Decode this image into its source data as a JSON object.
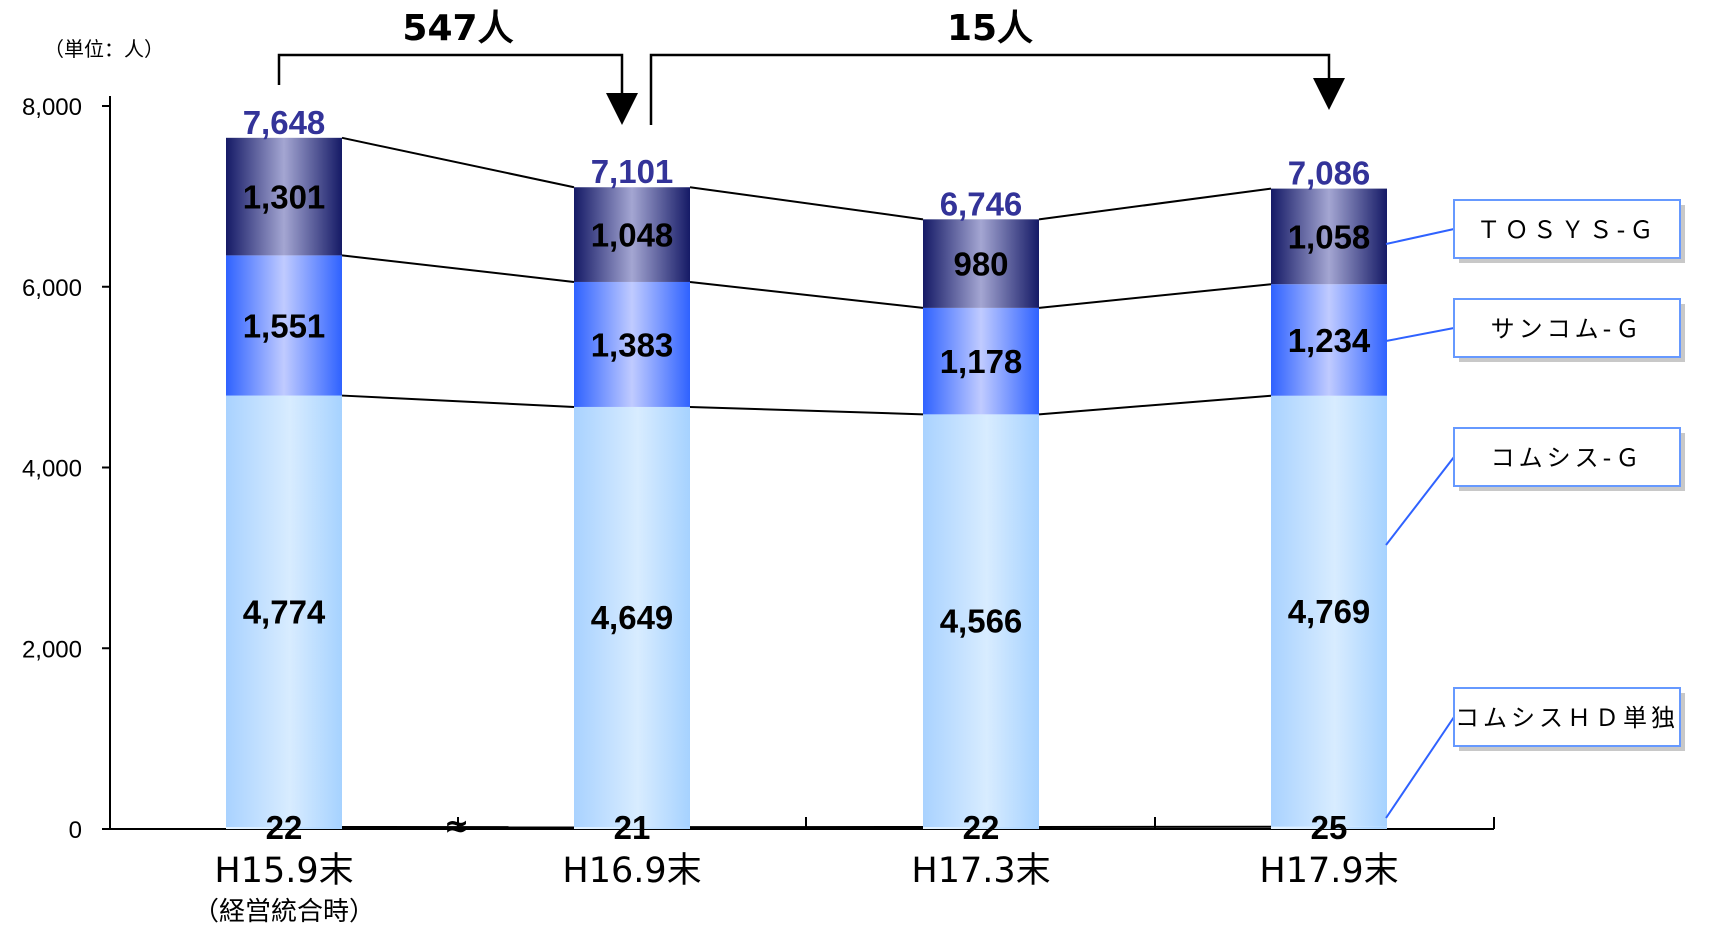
{
  "chart_data": {
    "type": "bar",
    "stacked": true,
    "unit_label": "（単位：人）",
    "categories": [
      "H15.9末",
      "H16.9末",
      "H17.3末",
      "H17.9末"
    ],
    "category_sub": [
      "（経営統合時）",
      "",
      "",
      ""
    ],
    "ylim": [
      0,
      8000
    ],
    "yticks": [
      "0",
      "2,000",
      "4,000",
      "6,000",
      "8,000"
    ],
    "series": [
      {
        "name": "コムシスＨＤ単独",
        "values": [
          22,
          21,
          22,
          25
        ],
        "labels": [
          "22",
          "21",
          "22",
          "25"
        ],
        "color": "#a6d2ff"
      },
      {
        "name": "コムシス-Ｇ",
        "values": [
          4774,
          4649,
          4566,
          4769
        ],
        "labels": [
          "4,774",
          "4,649",
          "4,566",
          "4,769"
        ],
        "color": "#b9dcff"
      },
      {
        "name": "サンコム-Ｇ",
        "values": [
          1551,
          1383,
          1178,
          1234
        ],
        "labels": [
          "1,551",
          "1,383",
          "1,178",
          "1,234"
        ],
        "color": "#2f62ff"
      },
      {
        "name": "ＴＯＳＹＳ-Ｇ",
        "values": [
          1301,
          1048,
          980,
          1058
        ],
        "labels": [
          "1,301",
          "1,048",
          "980",
          "1,058"
        ],
        "color": "#1d2277"
      }
    ],
    "totals": [
      "7,648",
      "7,101",
      "6,746",
      "7,086"
    ],
    "annotations": [
      {
        "text": "547人",
        "from": 0,
        "to": 1
      },
      {
        "text": "15人",
        "from": 1,
        "to": 3
      }
    ],
    "axis_break_mark": "≈",
    "grid": false
  }
}
